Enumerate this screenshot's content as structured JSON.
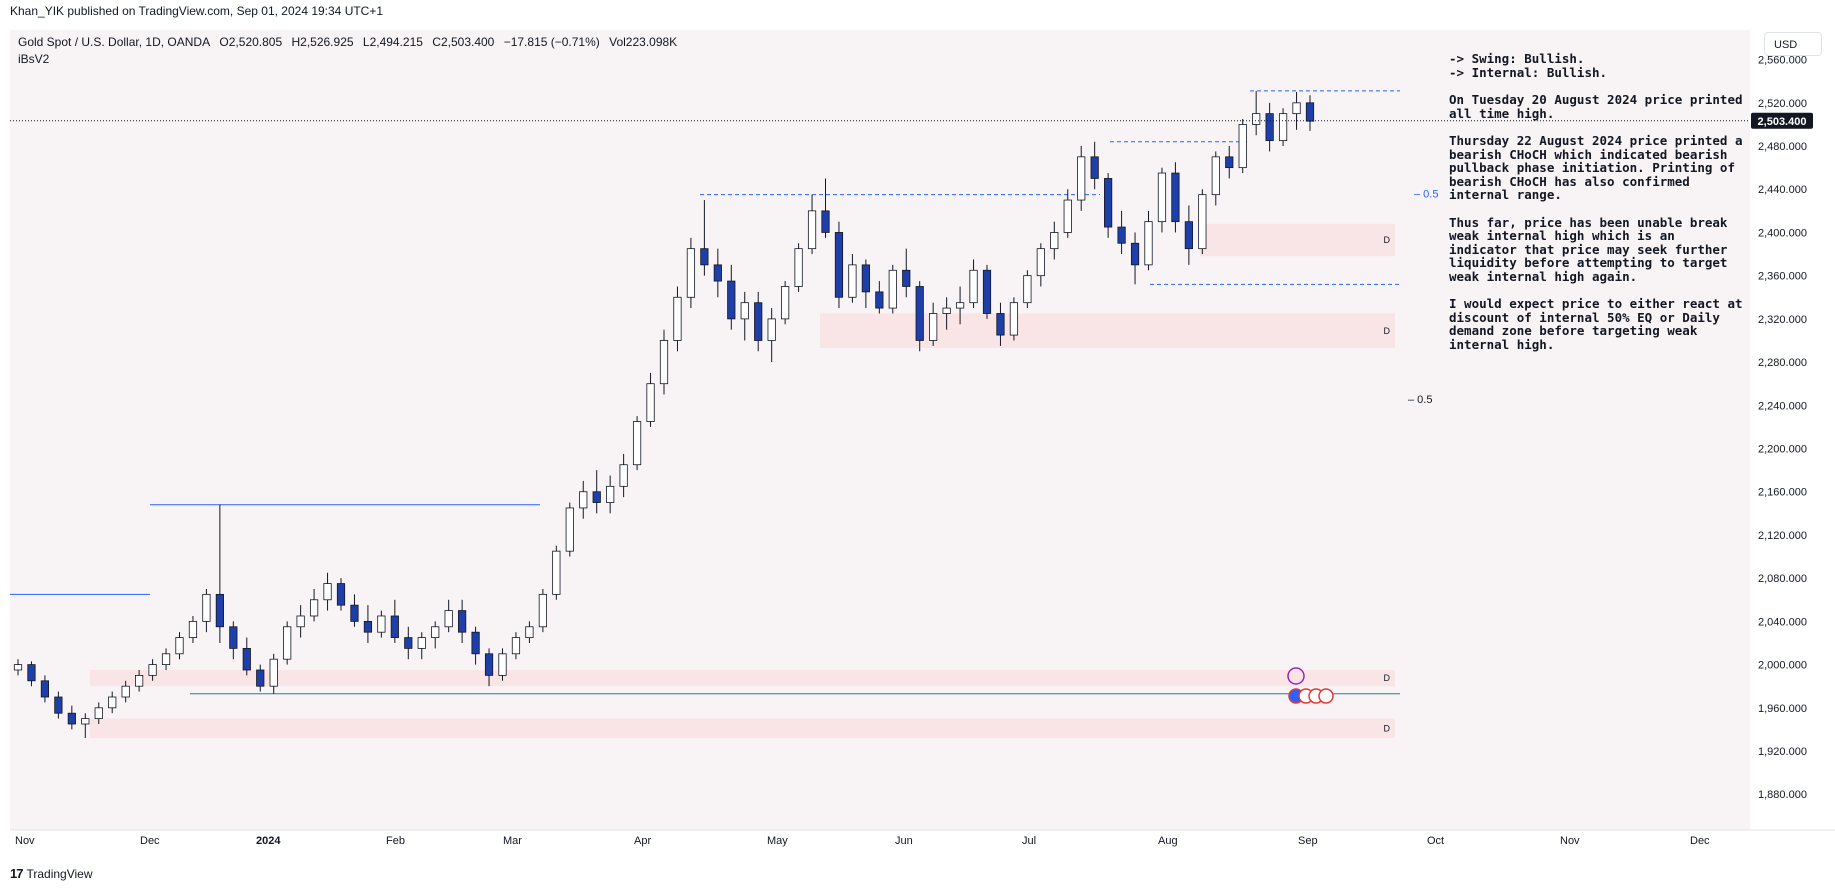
{
  "header": {
    "published": "Khan_YIK published on TradingView.com, Sep 01, 2024 19:34 UTC+1"
  },
  "symbol": {
    "name": "Gold Spot / U.S. Dollar, 1D, OANDA",
    "open": "O2,520.805",
    "high": "H2,526.925",
    "low": "L2,494.215",
    "close": "C2,503.400",
    "change": "−17.815 (−0.71%)",
    "volume": "Vol223.098K",
    "indicator": "iBsV2"
  },
  "currency_label": "USD",
  "current_price_label": "2,503.400",
  "notes": [
    "-> Swing: Bullish.",
    "-> Internal: Bullish.",
    "On Tuesday 20 August 2024 price printed all time high.",
    "Thursday 22 August 2024 price printed a bearish CHoCH which indicated bearish pullback phase initiation.  Printing of bearish CHoCH has also confirmed internal range.",
    "Thus far, price has been unable break weak internal high which is an indicator that price may seek further liquidity before attempting to target weak internal high again.",
    "I would expect price to either react at discount of internal 50% EQ or Daily demand zone before targeting weak internal high."
  ],
  "footer": {
    "brand": "TradingView"
  },
  "chart_data": {
    "type": "candlestick",
    "title": "Gold Spot / U.S. Dollar, 1D, OANDA",
    "y_ticks": [
      1880,
      1920,
      1960,
      2000,
      2040,
      2080,
      2120,
      2160,
      2200,
      2240,
      2280,
      2320,
      2360,
      2400,
      2440,
      2480,
      2520,
      2560
    ],
    "y_tick_labels": [
      "1,880.000",
      "1,920.000",
      "1,960.000",
      "2,000.000",
      "2,040.000",
      "2,080.000",
      "2,120.000",
      "2,160.000",
      "2,200.000",
      "2,240.000",
      "2,280.000",
      "2,320.000",
      "2,360.000",
      "2,400.000",
      "2,440.000",
      "2,480.000",
      "2,520.000",
      "2,560.000"
    ],
    "ylim": [
      1858,
      2580
    ],
    "x_labels": [
      "Nov",
      "Dec",
      "2024",
      "Feb",
      "Mar",
      "Apr",
      "May",
      "Jun",
      "Jul",
      "Aug",
      "Sep",
      "Oct",
      "Nov",
      "Dec"
    ],
    "current_price": 2503.4,
    "eq_labels": [
      "0.5",
      "0.5"
    ],
    "eq_levels": [
      2436,
      2246
    ],
    "zone_label": "D",
    "demand_zones": [
      {
        "low": 2293,
        "high": 2325
      },
      {
        "low": 2378,
        "high": 2408
      },
      {
        "low": 1980,
        "high": 1995
      },
      {
        "low": 1932,
        "high": 1950
      }
    ],
    "key_levels": {
      "all_time_high": 2531,
      "internal_high_2024_08": 2484,
      "internal_low_2024_07": 2352,
      "swing_low_2023_12": 1973,
      "swing_high_2023_12": 2148
    },
    "ohlc_sample": [
      [
        1995,
        2005,
        1990,
        2000
      ],
      [
        2000,
        2003,
        1980,
        1985
      ],
      [
        1985,
        1990,
        1965,
        1970
      ],
      [
        1970,
        1975,
        1950,
        1955
      ],
      [
        1955,
        1962,
        1940,
        1945
      ],
      [
        1945,
        1955,
        1932,
        1950
      ],
      [
        1950,
        1965,
        1945,
        1960
      ],
      [
        1960,
        1975,
        1955,
        1970
      ],
      [
        1970,
        1985,
        1965,
        1980
      ],
      [
        1980,
        1995,
        1975,
        1990
      ],
      [
        1990,
        2005,
        1985,
        2000
      ],
      [
        2000,
        2015,
        1995,
        2010
      ],
      [
        2010,
        2030,
        2005,
        2025
      ],
      [
        2025,
        2045,
        2020,
        2040
      ],
      [
        2040,
        2070,
        2030,
        2065
      ],
      [
        2065,
        2148,
        2020,
        2035
      ],
      [
        2035,
        2040,
        2005,
        2015
      ],
      [
        2015,
        2025,
        1990,
        1995
      ],
      [
        1995,
        2000,
        1975,
        1980
      ],
      [
        1980,
        2010,
        1973,
        2005
      ],
      [
        2005,
        2040,
        2000,
        2035
      ],
      [
        2035,
        2055,
        2025,
        2045
      ],
      [
        2045,
        2070,
        2040,
        2060
      ],
      [
        2060,
        2085,
        2050,
        2075
      ],
      [
        2075,
        2080,
        2050,
        2055
      ],
      [
        2055,
        2065,
        2035,
        2040
      ],
      [
        2040,
        2055,
        2020,
        2030
      ],
      [
        2030,
        2050,
        2025,
        2045
      ],
      [
        2045,
        2060,
        2020,
        2025
      ],
      [
        2025,
        2035,
        2005,
        2015
      ],
      [
        2015,
        2030,
        2005,
        2025
      ],
      [
        2025,
        2040,
        2015,
        2035
      ],
      [
        2035,
        2060,
        2030,
        2050
      ],
      [
        2050,
        2060,
        2020,
        2030
      ],
      [
        2030,
        2035,
        2000,
        2010
      ],
      [
        2010,
        2015,
        1980,
        1990
      ],
      [
        1990,
        2015,
        1985,
        2010
      ],
      [
        2010,
        2030,
        2005,
        2025
      ],
      [
        2025,
        2040,
        2020,
        2035
      ],
      [
        2035,
        2070,
        2030,
        2065
      ],
      [
        2065,
        2110,
        2060,
        2105
      ],
      [
        2105,
        2150,
        2100,
        2145
      ],
      [
        2145,
        2170,
        2135,
        2160
      ],
      [
        2160,
        2180,
        2140,
        2150
      ],
      [
        2150,
        2175,
        2140,
        2165
      ],
      [
        2165,
        2195,
        2155,
        2185
      ],
      [
        2185,
        2230,
        2180,
        2225
      ],
      [
        2225,
        2270,
        2220,
        2260
      ],
      [
        2260,
        2310,
        2250,
        2300
      ],
      [
        2300,
        2350,
        2290,
        2340
      ],
      [
        2340,
        2395,
        2330,
        2385
      ],
      [
        2385,
        2430,
        2360,
        2370
      ],
      [
        2370,
        2385,
        2340,
        2355
      ],
      [
        2355,
        2370,
        2310,
        2320
      ],
      [
        2320,
        2345,
        2300,
        2335
      ],
      [
        2335,
        2345,
        2290,
        2300
      ],
      [
        2300,
        2330,
        2280,
        2320
      ],
      [
        2320,
        2355,
        2315,
        2350
      ],
      [
        2350,
        2390,
        2345,
        2385
      ],
      [
        2385,
        2435,
        2380,
        2420
      ],
      [
        2420,
        2450,
        2395,
        2400
      ],
      [
        2400,
        2410,
        2330,
        2340
      ],
      [
        2340,
        2380,
        2335,
        2370
      ],
      [
        2370,
        2375,
        2330,
        2345
      ],
      [
        2345,
        2355,
        2325,
        2330
      ],
      [
        2330,
        2370,
        2325,
        2365
      ],
      [
        2365,
        2385,
        2340,
        2350
      ],
      [
        2350,
        2355,
        2290,
        2300
      ],
      [
        2300,
        2335,
        2295,
        2325
      ],
      [
        2325,
        2340,
        2310,
        2330
      ],
      [
        2330,
        2350,
        2315,
        2335
      ],
      [
        2335,
        2375,
        2330,
        2365
      ],
      [
        2365,
        2370,
        2320,
        2325
      ],
      [
        2325,
        2335,
        2295,
        2305
      ],
      [
        2305,
        2340,
        2300,
        2335
      ],
      [
        2335,
        2365,
        2330,
        2360
      ],
      [
        2360,
        2390,
        2350,
        2385
      ],
      [
        2385,
        2410,
        2375,
        2400
      ],
      [
        2400,
        2440,
        2395,
        2430
      ],
      [
        2430,
        2480,
        2420,
        2470
      ],
      [
        2470,
        2484,
        2440,
        2450
      ],
      [
        2450,
        2455,
        2395,
        2405
      ],
      [
        2405,
        2420,
        2380,
        2390
      ],
      [
        2390,
        2400,
        2352,
        2370
      ],
      [
        2370,
        2420,
        2365,
        2410
      ],
      [
        2410,
        2460,
        2400,
        2455
      ],
      [
        2455,
        2465,
        2400,
        2410
      ],
      [
        2410,
        2425,
        2370,
        2385
      ],
      [
        2385,
        2440,
        2380,
        2435
      ],
      [
        2435,
        2475,
        2425,
        2470
      ],
      [
        2470,
        2480,
        2450,
        2460
      ],
      [
        2460,
        2505,
        2455,
        2500
      ],
      [
        2500,
        2531,
        2490,
        2510
      ],
      [
        2510,
        2520,
        2475,
        2485
      ],
      [
        2485,
        2515,
        2480,
        2510
      ],
      [
        2510,
        2530,
        2495,
        2520
      ],
      [
        2520,
        2527,
        2494,
        2503
      ]
    ]
  }
}
